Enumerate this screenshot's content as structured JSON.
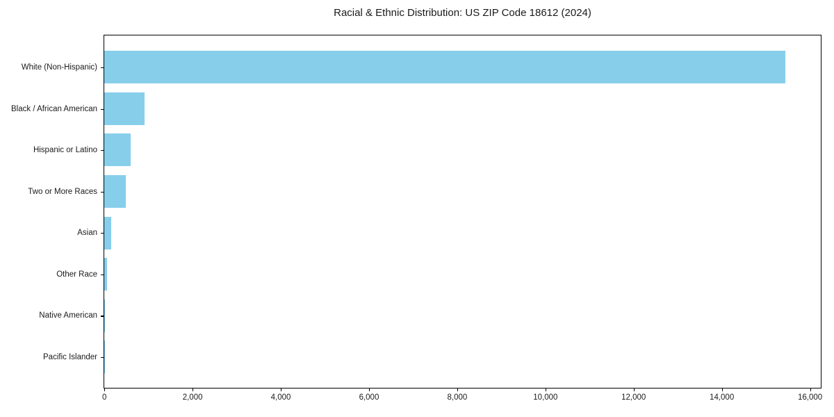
{
  "chart_data": {
    "type": "bar",
    "orientation": "horizontal",
    "title": "Racial & Ethnic Distribution: US ZIP Code 18612 (2024)",
    "categories": [
      "White (Non-Hispanic)",
      "Black / African American",
      "Hispanic or Latino",
      "Two or More Races",
      "Asian",
      "Other Race",
      "Native American",
      "Pacific Islander"
    ],
    "values": [
      15450,
      910,
      605,
      490,
      152,
      63,
      13,
      3
    ],
    "bar_color": "#87CEEB",
    "axis_color": "#000000",
    "text_color": "#1a1a1a",
    "background_color": "#ffffff",
    "xlabel": "",
    "ylabel": "",
    "xlim": [
      0,
      16240
    ],
    "x_ticks": [
      0,
      2000,
      4000,
      6000,
      8000,
      10000,
      12000,
      14000,
      16000
    ],
    "x_tick_labels": [
      "0",
      "2,000",
      "4,000",
      "6,000",
      "8,000",
      "10,000",
      "12,000",
      "14,000",
      "16,000"
    ],
    "grid": false,
    "legend": "none"
  }
}
